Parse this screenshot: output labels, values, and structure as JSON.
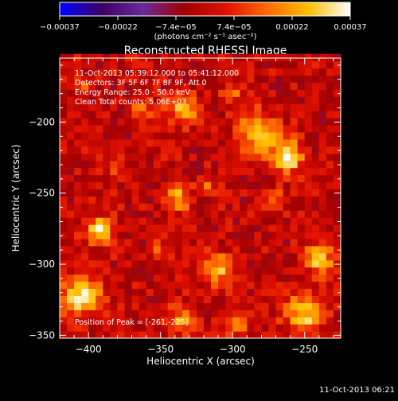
{
  "chart_data": {
    "type": "heatmap",
    "title": "Reconstructed RHESSI Image",
    "xlabel": "Heliocentric X (arcsec)",
    "ylabel": "Heliocentric Y (arcsec)",
    "xlim": [
      -420,
      -225
    ],
    "ylim": [
      -352,
      -155
    ],
    "x_ticks": [
      -400,
      -350,
      -300,
      -250
    ],
    "y_ticks": [
      -200,
      -250,
      -300,
      -350
    ],
    "x_tick_labels": [
      "−400",
      "−350",
      "−300",
      "−250"
    ],
    "y_tick_labels": [
      "−200",
      "−250",
      "−300",
      "−350"
    ],
    "colorbar": {
      "range": [
        -0.00037,
        0.00037
      ],
      "tick_labels": [
        "−0.00037",
        "−0.00022",
        "−7.4e−05",
        "7.4e−05",
        "0.00022",
        "0.00037"
      ],
      "units_label": "(photons cm⁻² s⁻¹ asec⁻²)",
      "colormap": [
        "#0000ff",
        "#3a0064",
        "#6a2a9a",
        "#a00000",
        "#e01000",
        "#ff6a00",
        "#ffc000",
        "#ffffff"
      ]
    },
    "annotations": {
      "time_range": "11-Oct-2013 05:39:12.000 to 05:41:12.000",
      "detectors": "Detectors: 3F 5F 6F 7F 8F 9F, Att 0",
      "energy": "Energy Range: 25.0 - 50.0 keV",
      "clean": "Clean    Total counts: 5.06E+03",
      "peak": "Position of Peak = [-261,-225]"
    },
    "peak_position": [
      -261,
      -225
    ],
    "total_counts": 5060,
    "sources": [
      {
        "x": -262,
        "y": -224,
        "flux": 0.00037,
        "radius": 12
      },
      {
        "x": -282,
        "y": -207,
        "flux": 0.00031,
        "radius": 16
      },
      {
        "x": -334,
        "y": -191,
        "flux": 0.00028,
        "radius": 12
      },
      {
        "x": -405,
        "y": -322,
        "flux": 0.00036,
        "radius": 15
      },
      {
        "x": -392,
        "y": -276,
        "flux": 0.0003,
        "radius": 11
      },
      {
        "x": -337,
        "y": -253,
        "flux": 0.00025,
        "radius": 10
      },
      {
        "x": -309,
        "y": -303,
        "flux": 0.00024,
        "radius": 13
      },
      {
        "x": -240,
        "y": -295,
        "flux": 0.00027,
        "radius": 13
      },
      {
        "x": -251,
        "y": -335,
        "flux": 0.00029,
        "radius": 15
      },
      {
        "x": -334,
        "y": -338,
        "flux": 0.00022,
        "radius": 11
      },
      {
        "x": -297,
        "y": -342,
        "flux": 0.00018,
        "radius": 10
      },
      {
        "x": -270,
        "y": -255,
        "flux": 0.00017,
        "radius": 8
      },
      {
        "x": -362,
        "y": -190,
        "flux": 0.00015,
        "radius": 9
      },
      {
        "x": -405,
        "y": -175,
        "flux": 0.00012,
        "radius": 8
      },
      {
        "x": -300,
        "y": -180,
        "flux": 0.00014,
        "radius": 8
      },
      {
        "x": -318,
        "y": -244,
        "flux": 0.00013,
        "radius": 7
      },
      {
        "x": -352,
        "y": -290,
        "flux": 0.00012,
        "radius": 8
      },
      {
        "x": -383,
        "y": -232,
        "flux": 0.00012,
        "radius": 7
      }
    ]
  },
  "footer": {
    "timestamp": "11-Oct-2013 06:21"
  }
}
